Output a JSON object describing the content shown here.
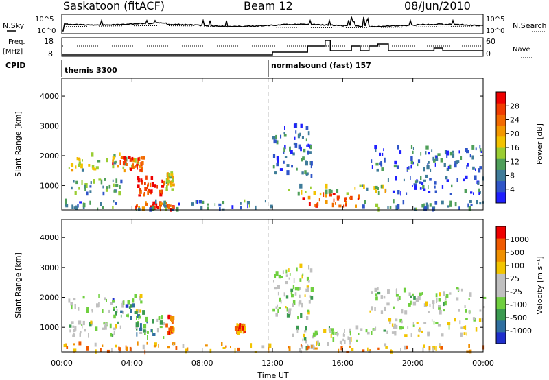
{
  "header": {
    "station": "Saskatoon (fitACF)",
    "beam": "Beam 12",
    "date": "08/Jun/2010"
  },
  "summary": {
    "nsky_label": "N.Sky",
    "nsky_ticks": [
      "10^5",
      "10^0"
    ],
    "nsearch_label": "N.Search",
    "nsearch_ticks": [
      "10^5",
      "10^0"
    ],
    "freq_label": "Freq.",
    "freq_unit": "[MHz]",
    "freq_ticks": [
      "18",
      "8"
    ],
    "nave_label": "Nave",
    "nave_ticks": [
      "60",
      "0"
    ],
    "cpid_label": "CPID",
    "cpid_segments": [
      {
        "label": "themis 3300",
        "start_hour": 0
      },
      {
        "label": "normalsound (fast) 157",
        "start_hour": 12
      }
    ]
  },
  "chart_data": [
    {
      "type": "heatmap",
      "name": "power",
      "xlabel": "",
      "ylabel": "Slant Range [km]",
      "xlim": [
        0,
        24
      ],
      "ylim": [
        180,
        4600
      ],
      "y_ticks": [
        "1000",
        "2000",
        "3000",
        "4000"
      ],
      "y_tick_values": [
        1000,
        2000,
        3000,
        4000
      ],
      "colorbar": {
        "label": "Power [dB]",
        "ticks": [
          "4",
          "8",
          "12",
          "16",
          "20",
          "24",
          "28"
        ],
        "colors": [
          "#1f1fff",
          "#2f55c8",
          "#3f7c9a",
          "#4f9f5a",
          "#9acd32",
          "#f2c200",
          "#f39800",
          "#f26a00",
          "#f03c00",
          "#ee0000"
        ]
      },
      "regions": [
        {
          "t": [
            0.3,
            4.6
          ],
          "r": [
            1500,
            2050
          ],
          "level": 0.45
        },
        {
          "t": [
            2.8,
            4.6
          ],
          "r": [
            1500,
            1950
          ],
          "level": 0.8
        },
        {
          "t": [
            0.4,
            3.4
          ],
          "r": [
            700,
            1200
          ],
          "level": 0.3
        },
        {
          "t": [
            4.2,
            5.8
          ],
          "r": [
            650,
            1350
          ],
          "level": 0.88
        },
        {
          "t": [
            4.0,
            6.3
          ],
          "r": [
            180,
            420
          ],
          "level": 0.85
        },
        {
          "t": [
            5.9,
            6.3
          ],
          "r": [
            800,
            1400
          ],
          "level": 0.55
        },
        {
          "t": [
            0.0,
            11.9
          ],
          "r": [
            180,
            480
          ],
          "level": 0.25
        },
        {
          "t": [
            12.0,
            14.2
          ],
          "r": [
            1300,
            3100
          ],
          "level": 0.2
        },
        {
          "t": [
            13.6,
            17.0
          ],
          "r": [
            300,
            720
          ],
          "level": 0.82
        },
        {
          "t": [
            12.8,
            18.4
          ],
          "r": [
            700,
            1000
          ],
          "level": 0.45
        },
        {
          "t": [
            17.0,
            24.0
          ],
          "r": [
            180,
            480
          ],
          "level": 0.3
        },
        {
          "t": [
            17.5,
            24.0
          ],
          "r": [
            1500,
            2300
          ],
          "level": 0.2
        },
        {
          "t": [
            18.5,
            24.0
          ],
          "r": [
            700,
            1300
          ],
          "level": 0.15
        }
      ]
    },
    {
      "type": "heatmap",
      "name": "velocity",
      "xlabel": "Time UT",
      "ylabel": "Slant Range [km]",
      "xlim": [
        0,
        24
      ],
      "ylim": [
        180,
        4600
      ],
      "x_ticks": [
        "00:00",
        "04:00",
        "08:00",
        "12:00",
        "16:00",
        "20:00",
        "00:00"
      ],
      "x_tick_values": [
        0,
        4,
        8,
        12,
        16,
        20,
        24
      ],
      "y_ticks": [
        "1000",
        "2000",
        "3000",
        "4000"
      ],
      "y_tick_values": [
        1000,
        2000,
        3000,
        4000
      ],
      "colorbar": {
        "label": "Velocity [m s⁻¹]",
        "ticks": [
          "1000",
          "500",
          "100",
          "25",
          "-25",
          "-100",
          "-500",
          "-1000"
        ],
        "colors": [
          "#1f2fcc",
          "#2f6fa0",
          "#3a9a50",
          "#6fcf3f",
          "#c0c0c0",
          "#c0c0c0",
          "#f2c400",
          "#f09000",
          "#f05a00",
          "#ee0000"
        ]
      },
      "regions": [
        {
          "t": [
            0.3,
            4.6
          ],
          "r": [
            1500,
            2050
          ],
          "level": 0.45
        },
        {
          "t": [
            2.8,
            4.6
          ],
          "r": [
            1300,
            1900
          ],
          "level": 0.25
        },
        {
          "t": [
            0.4,
            3.4
          ],
          "r": [
            700,
            1200
          ],
          "level": 0.45
        },
        {
          "t": [
            4.2,
            5.8
          ],
          "r": [
            650,
            1350
          ],
          "level": 0.3
        },
        {
          "t": [
            5.9,
            6.3
          ],
          "r": [
            800,
            1400
          ],
          "level": 0.78
        },
        {
          "t": [
            9.8,
            10.4
          ],
          "r": [
            800,
            1100
          ],
          "level": 0.8
        },
        {
          "t": [
            0.0,
            11.9
          ],
          "r": [
            180,
            480
          ],
          "level": 0.72
        },
        {
          "t": [
            12.0,
            14.2
          ],
          "r": [
            1300,
            3100
          ],
          "level": 0.45
        },
        {
          "t": [
            13.6,
            17.0
          ],
          "r": [
            300,
            900
          ],
          "level": 0.45
        },
        {
          "t": [
            12.8,
            18.4
          ],
          "r": [
            700,
            1000
          ],
          "level": 0.45
        },
        {
          "t": [
            12.0,
            24.0
          ],
          "r": [
            180,
            420
          ],
          "level": 0.72
        },
        {
          "t": [
            17.5,
            24.0
          ],
          "r": [
            1500,
            2300
          ],
          "level": 0.45
        },
        {
          "t": [
            18.5,
            24.0
          ],
          "r": [
            700,
            1300
          ],
          "level": 0.5
        }
      ]
    }
  ]
}
